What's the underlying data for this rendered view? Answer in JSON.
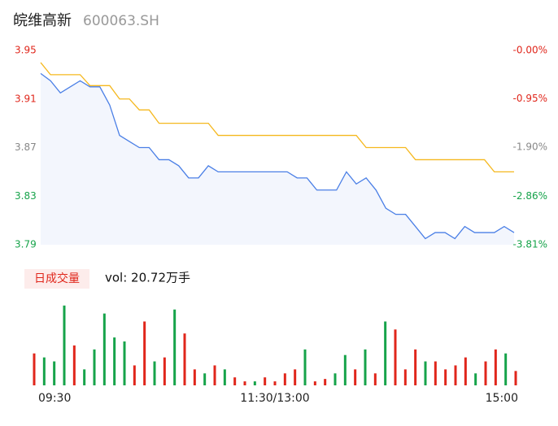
{
  "header": {
    "name": "皖维高新",
    "code": "600063.SH"
  },
  "chart_data": [
    {
      "type": "line",
      "x": [
        0,
        5,
        10,
        15,
        20,
        25,
        30,
        35,
        40,
        45,
        50,
        55,
        60,
        65,
        70,
        75,
        80,
        85,
        90,
        95,
        100,
        105,
        110,
        115,
        120,
        125,
        130,
        135,
        140,
        145,
        150,
        155,
        160,
        165,
        170,
        175,
        180,
        185,
        190,
        195,
        200,
        205,
        210,
        215,
        220,
        225,
        230,
        235,
        240
      ],
      "xlim": [
        0,
        240
      ],
      "series": [
        {
          "name": "price",
          "color": "#4a7fe6",
          "values": [
            3.931,
            3.925,
            3.915,
            3.92,
            3.925,
            3.92,
            3.92,
            3.905,
            3.88,
            3.875,
            3.87,
            3.87,
            3.86,
            3.86,
            3.855,
            3.845,
            3.845,
            3.855,
            3.85,
            3.85,
            3.85,
            3.85,
            3.85,
            3.85,
            3.85,
            3.85,
            3.845,
            3.845,
            3.835,
            3.835,
            3.835,
            3.85,
            3.84,
            3.845,
            3.835,
            3.82,
            3.815,
            3.815,
            3.805,
            3.795,
            3.8,
            3.8,
            3.795,
            3.805,
            3.8,
            3.8,
            3.8,
            3.805,
            3.8
          ]
        },
        {
          "name": "average",
          "color": "#f5b81e",
          "values": [
            3.94,
            3.93,
            3.93,
            3.93,
            3.93,
            3.921,
            3.921,
            3.921,
            3.91,
            3.91,
            3.901,
            3.901,
            3.89,
            3.89,
            3.89,
            3.89,
            3.89,
            3.89,
            3.88,
            3.88,
            3.88,
            3.88,
            3.88,
            3.88,
            3.88,
            3.88,
            3.88,
            3.88,
            3.88,
            3.88,
            3.88,
            3.88,
            3.88,
            3.87,
            3.87,
            3.87,
            3.87,
            3.87,
            3.86,
            3.86,
            3.86,
            3.86,
            3.86,
            3.86,
            3.86,
            3.86,
            3.85,
            3.85,
            3.85
          ]
        }
      ],
      "ylim": [
        3.79,
        3.95
      ],
      "yticks": [
        3.95,
        3.91,
        3.87,
        3.83,
        3.79
      ],
      "y2lim": [
        -3.81,
        0
      ],
      "y2ticks": [
        {
          "value": 0,
          "label": "-0.00%"
        },
        {
          "value": -0.95,
          "label": "-0.95%"
        },
        {
          "value": -1.9,
          "label": "-1.90%"
        },
        {
          "value": -2.86,
          "label": "-2.86%"
        },
        {
          "value": -3.81,
          "label": "-3.81%"
        }
      ],
      "tick_colors": [
        "#e0261b",
        "#e0261b",
        "#888888",
        "#16a34a",
        "#16a34a"
      ],
      "area_color": "#f3f6fd"
    },
    {
      "type": "bar",
      "label": "日成交量",
      "summary": "vol: 20.72万手",
      "x": [
        0,
        5,
        10,
        15,
        20,
        25,
        30,
        35,
        40,
        45,
        50,
        55,
        60,
        65,
        70,
        75,
        80,
        85,
        90,
        95,
        100,
        105,
        110,
        115,
        120,
        125,
        130,
        135,
        140,
        145,
        150,
        155,
        160,
        165,
        170,
        175,
        180,
        185,
        190,
        195,
        200,
        205,
        210,
        215,
        220,
        225,
        230,
        235,
        240
      ],
      "xlim": [
        0,
        240
      ],
      "values": [
        40,
        35,
        30,
        100,
        50,
        20,
        45,
        90,
        60,
        55,
        25,
        80,
        30,
        35,
        95,
        65,
        20,
        15,
        25,
        20,
        10,
        5,
        5,
        10,
        5,
        15,
        20,
        45,
        5,
        8,
        15,
        38,
        20,
        45,
        15,
        80,
        70,
        20,
        45,
        30,
        30,
        20,
        25,
        35,
        15,
        30,
        45,
        40,
        18
      ],
      "colors": [
        "#e0261b",
        "#16a34a",
        "#16a34a",
        "#16a34a",
        "#e0261b",
        "#16a34a",
        "#16a34a",
        "#16a34a",
        "#16a34a",
        "#16a34a",
        "#e0261b",
        "#e0261b",
        "#16a34a",
        "#e0261b",
        "#16a34a",
        "#e0261b",
        "#e0261b",
        "#16a34a",
        "#e0261b",
        "#16a34a",
        "#e0261b",
        "#e0261b",
        "#16a34a",
        "#e0261b",
        "#e0261b",
        "#e0261b",
        "#e0261b",
        "#16a34a",
        "#e0261b",
        "#e0261b",
        "#16a34a",
        "#16a34a",
        "#e0261b",
        "#16a34a",
        "#e0261b",
        "#16a34a",
        "#e0261b",
        "#e0261b",
        "#e0261b",
        "#16a34a",
        "#e0261b",
        "#e0261b",
        "#e0261b",
        "#e0261b",
        "#16a34a",
        "#e0261b",
        "#e0261b",
        "#16a34a",
        "#e0261b"
      ],
      "ylim": [
        0,
        110
      ],
      "xticks": [
        {
          "value": 0,
          "label": "09:30"
        },
        {
          "value": 120,
          "label": "11:30/13:00"
        },
        {
          "value": 240,
          "label": "15:00"
        }
      ]
    }
  ]
}
